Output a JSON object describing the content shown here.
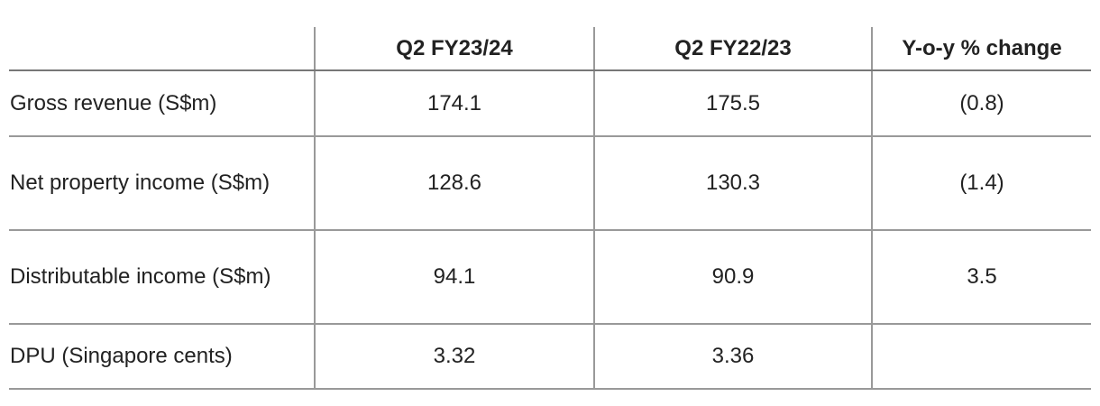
{
  "table": {
    "header": [
      "Q2 FY23/24",
      "Q2 FY22/23",
      "Y-o-y % change"
    ],
    "rows": [
      [
        "Gross revenue (S$m)",
        "174.1",
        "175.5",
        "(0.8)"
      ],
      [
        "Net property income (S$m)",
        "128.6",
        "130.3",
        "(1.4)"
      ],
      [
        "Distributable income (S$m)",
        "94.1",
        "90.9",
        "3.5"
      ],
      [
        "DPU (Singapore cents)",
        "3.32",
        "3.36"
      ]
    ]
  }
}
